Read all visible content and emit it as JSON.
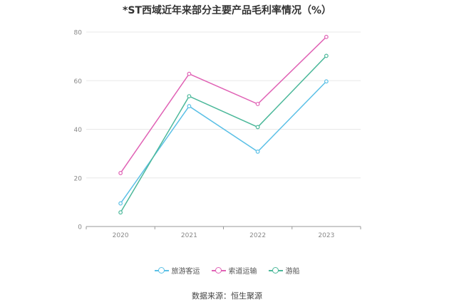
{
  "chart_data": {
    "type": "line",
    "title": "*ST西域近年来部分主要产品毛利率情况（%）",
    "categories": [
      "2020",
      "2021",
      "2022",
      "2023"
    ],
    "ylim": [
      0,
      80
    ],
    "yticks": [
      0,
      20,
      40,
      60,
      80
    ],
    "grid": true,
    "legend_position": "bottom",
    "series": [
      {
        "name": "旅游客运",
        "color": "#5bc0e6",
        "values": [
          9.5,
          49.5,
          30.8,
          59.7
        ]
      },
      {
        "name": "索道运输",
        "color": "#e062b5",
        "values": [
          22.0,
          62.8,
          50.4,
          78.0
        ]
      },
      {
        "name": "游船",
        "color": "#4cb89a",
        "values": [
          5.8,
          53.6,
          40.9,
          70.2
        ]
      }
    ],
    "source": "数据来源：恒生聚源"
  }
}
